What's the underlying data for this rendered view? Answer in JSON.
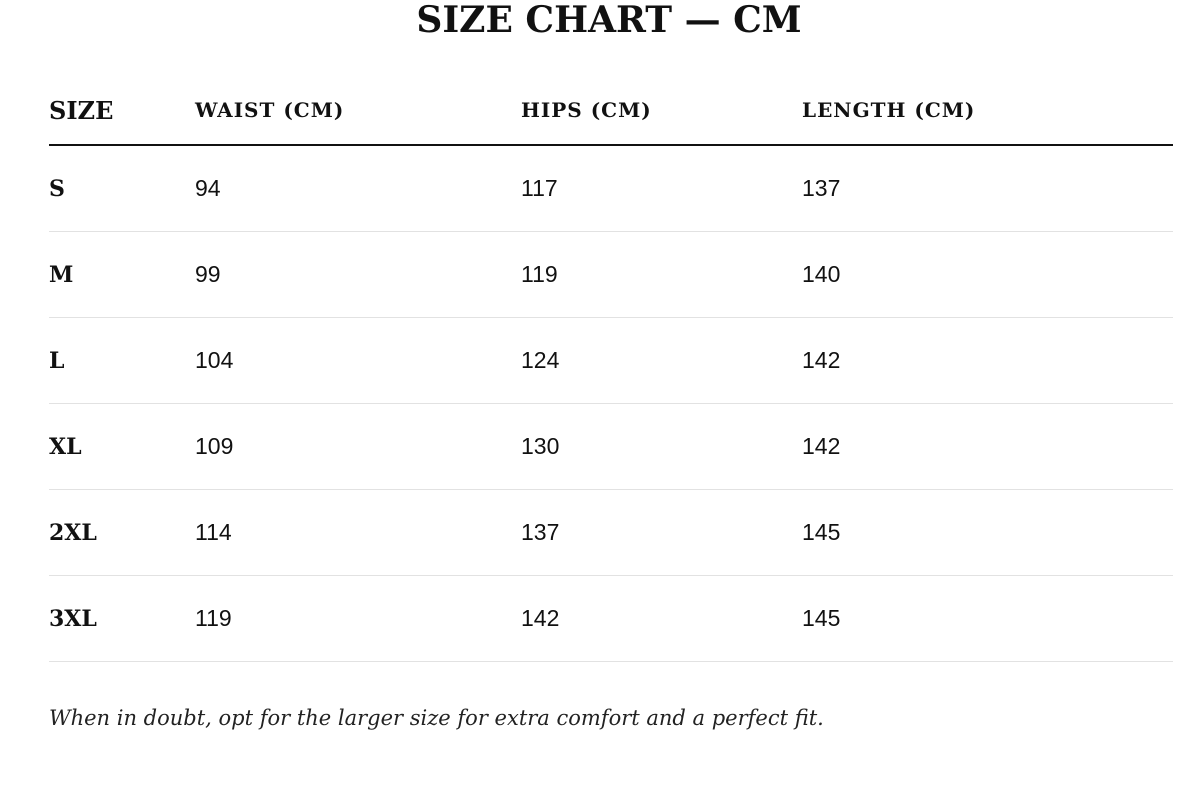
{
  "header": {
    "title": "SIZE CHART — CM"
  },
  "table": {
    "columns": [
      "SIZE",
      "WAIST (CM)",
      "HIPS (CM)",
      "LENGTH (CM)"
    ],
    "rows": [
      [
        "S",
        94,
        117,
        137
      ],
      [
        "M",
        99,
        119,
        140
      ],
      [
        "L",
        104,
        124,
        142
      ],
      [
        "XL",
        109,
        130,
        142
      ],
      [
        "2XL",
        114,
        137,
        145
      ],
      [
        "3XL",
        119,
        142,
        145
      ]
    ]
  },
  "note": "When in doubt, opt for the larger size for extra comfort and a perfect fit."
}
